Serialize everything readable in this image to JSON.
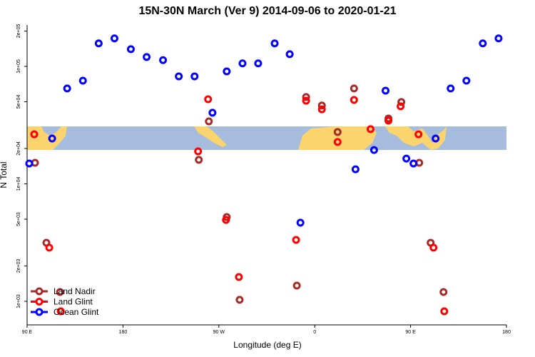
{
  "chart_data": {
    "type": "scatter",
    "title": "15N-30N March (Ver 9)   2014-09-06 to 2020-01-21",
    "x_label": "Longitude (deg E)",
    "y_label": "N Total",
    "xlim": [
      90,
      540
    ],
    "ylim": [
      630,
      225000
    ],
    "log_y": true,
    "legend": "bottom-left",
    "xticks": [
      {
        "value": 90,
        "label": "90 E"
      },
      {
        "value": 180,
        "label": "180"
      },
      {
        "value": 270,
        "label": "90 W"
      },
      {
        "value": 360,
        "label": "0"
      },
      {
        "value": 450,
        "label": "90 E"
      },
      {
        "value": 540,
        "label": "180"
      }
    ],
    "yticks": [
      {
        "value": 1000,
        "label": "1e+03"
      },
      {
        "value": 2000,
        "label": "2e+03"
      },
      {
        "value": 5000,
        "label": "5e+03"
      },
      {
        "value": 10000,
        "label": "1e+04"
      },
      {
        "value": 20000,
        "label": "2e+04"
      },
      {
        "value": 50000,
        "label": "5e+04"
      },
      {
        "value": 100000,
        "label": "1e+05"
      },
      {
        "value": 200000,
        "label": "2e+05"
      }
    ],
    "series": [
      {
        "name": "Land Nadir",
        "color": "#a52a2a",
        "x": [
          97.4,
          108.1,
          120.9,
          251.2,
          260.6,
          277.4,
          289.5,
          343.2,
          351.9,
          366.7,
          381.5,
          396.9,
          429.2,
          441.3,
          458.1,
          468.8,
          480.9
        ],
        "values": [
          15100,
          3150,
          1200,
          16000,
          34000,
          5210,
          1030,
          1360,
          54800,
          46400,
          27600,
          64900,
          36000,
          49700,
          15100,
          3150,
          1200
        ]
      },
      {
        "name": "Land Glint",
        "color": "#ff0000",
        "x": [
          96.7,
          110.8,
          121.6,
          250.5,
          259.9,
          276.7,
          288.8,
          342.5,
          351.9,
          366.7,
          381.5,
          396.9,
          412.4,
          429.2,
          440.6,
          457.4,
          471.5,
          481.6
        ],
        "values": [
          26400,
          2860,
          822,
          18900,
          52500,
          4930,
          1610,
          3330,
          51000,
          43100,
          22700,
          51800,
          29200,
          34500,
          45700,
          26400,
          2860,
          822
        ]
      },
      {
        "name": "Ocean Glint",
        "color": "#0000ff",
        "x": [
          92,
          113.5,
          127.6,
          142.4,
          157.2,
          172,
          187.4,
          202.2,
          217.6,
          232.4,
          247.2,
          264,
          277.4,
          292.2,
          306.9,
          322.4,
          336.5,
          346.6,
          398.3,
          415.7,
          426.5,
          446,
          452.7,
          473.5,
          487.6,
          502.4,
          517.8,
          532.6
        ],
        "values": [
          14900,
          24300,
          64900,
          75500,
          157000,
          173000,
          140000,
          120000,
          113000,
          82200,
          82200,
          40300,
          90600,
          106000,
          106000,
          157000,
          127000,
          4670,
          13300,
          19400,
          62100,
          16400,
          14900,
          24300,
          64900,
          75500,
          157000,
          173000
        ]
      }
    ]
  }
}
